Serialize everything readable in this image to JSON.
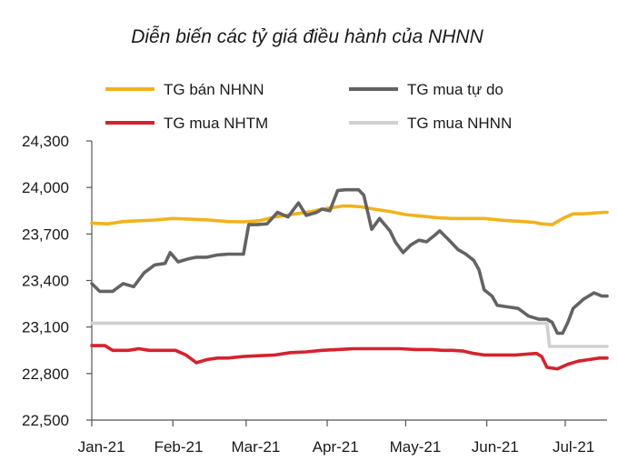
{
  "chart_data": {
    "type": "line",
    "title": "Diễn biến các tỷ giá điều hành của NHNN",
    "xlabel": "",
    "ylabel": "",
    "x_ticks": [
      "Jan-21",
      "Feb-21",
      "Mar-21",
      "Apr-21",
      "May-21",
      "Jun-21",
      "Jul-21"
    ],
    "x_range_days": [
      0,
      197
    ],
    "y_ticks": [
      "22,500",
      "22,800",
      "23,100",
      "23,400",
      "23,700",
      "24,000",
      "24,300"
    ],
    "ylim": [
      22500,
      24300
    ],
    "grid": false,
    "legend": "top",
    "series": [
      {
        "name": "TG bán NHNN",
        "color": "#f2b21c",
        "points": [
          [
            0,
            23770
          ],
          [
            6,
            23765
          ],
          [
            12,
            23780
          ],
          [
            18,
            23785
          ],
          [
            24,
            23790
          ],
          [
            31,
            23800
          ],
          [
            38,
            23795
          ],
          [
            45,
            23790
          ],
          [
            52,
            23780
          ],
          [
            58,
            23778
          ],
          [
            64,
            23785
          ],
          [
            70,
            23810
          ],
          [
            78,
            23830
          ],
          [
            84,
            23845
          ],
          [
            88,
            23860
          ],
          [
            92,
            23870
          ],
          [
            96,
            23880
          ],
          [
            99,
            23880
          ],
          [
            103,
            23875
          ],
          [
            108,
            23860
          ],
          [
            114,
            23845
          ],
          [
            120,
            23825
          ],
          [
            126,
            23815
          ],
          [
            132,
            23805
          ],
          [
            138,
            23800
          ],
          [
            144,
            23800
          ],
          [
            150,
            23800
          ],
          [
            156,
            23790
          ],
          [
            160,
            23785
          ],
          [
            165,
            23780
          ],
          [
            169,
            23775
          ],
          [
            172,
            23765
          ],
          [
            176,
            23760
          ],
          [
            180,
            23800
          ],
          [
            184,
            23830
          ],
          [
            188,
            23830
          ],
          [
            192,
            23835
          ],
          [
            196,
            23840
          ],
          [
            197,
            23840
          ]
        ]
      },
      {
        "name": "TG mua tự do",
        "color": "#636363",
        "points": [
          [
            0,
            23380
          ],
          [
            3,
            23330
          ],
          [
            8,
            23330
          ],
          [
            12,
            23380
          ],
          [
            16,
            23360
          ],
          [
            20,
            23450
          ],
          [
            24,
            23500
          ],
          [
            28,
            23510
          ],
          [
            30,
            23580
          ],
          [
            33,
            23520
          ],
          [
            37,
            23540
          ],
          [
            40,
            23550
          ],
          [
            44,
            23550
          ],
          [
            48,
            23565
          ],
          [
            52,
            23570
          ],
          [
            56,
            23570
          ],
          [
            58,
            23570
          ],
          [
            60,
            23760
          ],
          [
            63,
            23760
          ],
          [
            67,
            23765
          ],
          [
            71,
            23840
          ],
          [
            75,
            23810
          ],
          [
            79,
            23900
          ],
          [
            82,
            23820
          ],
          [
            86,
            23840
          ],
          [
            88,
            23860
          ],
          [
            91,
            23850
          ],
          [
            94,
            23980
          ],
          [
            97,
            23985
          ],
          [
            102,
            23985
          ],
          [
            104,
            23950
          ],
          [
            107,
            23730
          ],
          [
            110,
            23800
          ],
          [
            114,
            23720
          ],
          [
            116,
            23650
          ],
          [
            119,
            23580
          ],
          [
            122,
            23630
          ],
          [
            125,
            23660
          ],
          [
            128,
            23650
          ],
          [
            131,
            23690
          ],
          [
            133,
            23720
          ],
          [
            136,
            23670
          ],
          [
            140,
            23600
          ],
          [
            143,
            23570
          ],
          [
            146,
            23530
          ],
          [
            148,
            23470
          ],
          [
            150,
            23340
          ],
          [
            153,
            23300
          ],
          [
            155,
            23240
          ],
          [
            159,
            23230
          ],
          [
            163,
            23220
          ],
          [
            167,
            23170
          ],
          [
            171,
            23150
          ],
          [
            174,
            23150
          ],
          [
            176,
            23130
          ],
          [
            178,
            23060
          ],
          [
            180,
            23060
          ],
          [
            182,
            23130
          ],
          [
            184,
            23220
          ],
          [
            188,
            23280
          ],
          [
            192,
            23320
          ],
          [
            195,
            23300
          ],
          [
            197,
            23300
          ]
        ]
      },
      {
        "name": "TG mua NHTM",
        "color": "#d6222d",
        "points": [
          [
            0,
            22980
          ],
          [
            5,
            22980
          ],
          [
            8,
            22950
          ],
          [
            14,
            22950
          ],
          [
            18,
            22960
          ],
          [
            22,
            22950
          ],
          [
            28,
            22950
          ],
          [
            32,
            22950
          ],
          [
            36,
            22920
          ],
          [
            40,
            22870
          ],
          [
            44,
            22890
          ],
          [
            48,
            22900
          ],
          [
            52,
            22900
          ],
          [
            58,
            22910
          ],
          [
            64,
            22915
          ],
          [
            70,
            22920
          ],
          [
            76,
            22935
          ],
          [
            82,
            22940
          ],
          [
            88,
            22950
          ],
          [
            94,
            22955
          ],
          [
            100,
            22960
          ],
          [
            106,
            22960
          ],
          [
            112,
            22960
          ],
          [
            118,
            22960
          ],
          [
            124,
            22955
          ],
          [
            130,
            22955
          ],
          [
            134,
            22950
          ],
          [
            138,
            22950
          ],
          [
            142,
            22945
          ],
          [
            146,
            22930
          ],
          [
            150,
            22920
          ],
          [
            154,
            22920
          ],
          [
            158,
            22920
          ],
          [
            162,
            22920
          ],
          [
            166,
            22925
          ],
          [
            170,
            22930
          ],
          [
            172,
            22910
          ],
          [
            174,
            22840
          ],
          [
            178,
            22830
          ],
          [
            182,
            22860
          ],
          [
            186,
            22880
          ],
          [
            190,
            22890
          ],
          [
            194,
            22900
          ],
          [
            197,
            22900
          ]
        ]
      },
      {
        "name": "TG mua NHNN",
        "color": "#d0d0d0",
        "points": [
          [
            0,
            23125
          ],
          [
            30,
            23125
          ],
          [
            31,
            23125
          ],
          [
            33,
            23125
          ],
          [
            60,
            23125
          ],
          [
            90,
            23125
          ],
          [
            120,
            23125
          ],
          [
            150,
            23125
          ],
          [
            170,
            23125
          ],
          [
            174,
            23125
          ],
          [
            175,
            22975
          ],
          [
            185,
            22975
          ],
          [
            197,
            22975
          ]
        ]
      }
    ]
  }
}
